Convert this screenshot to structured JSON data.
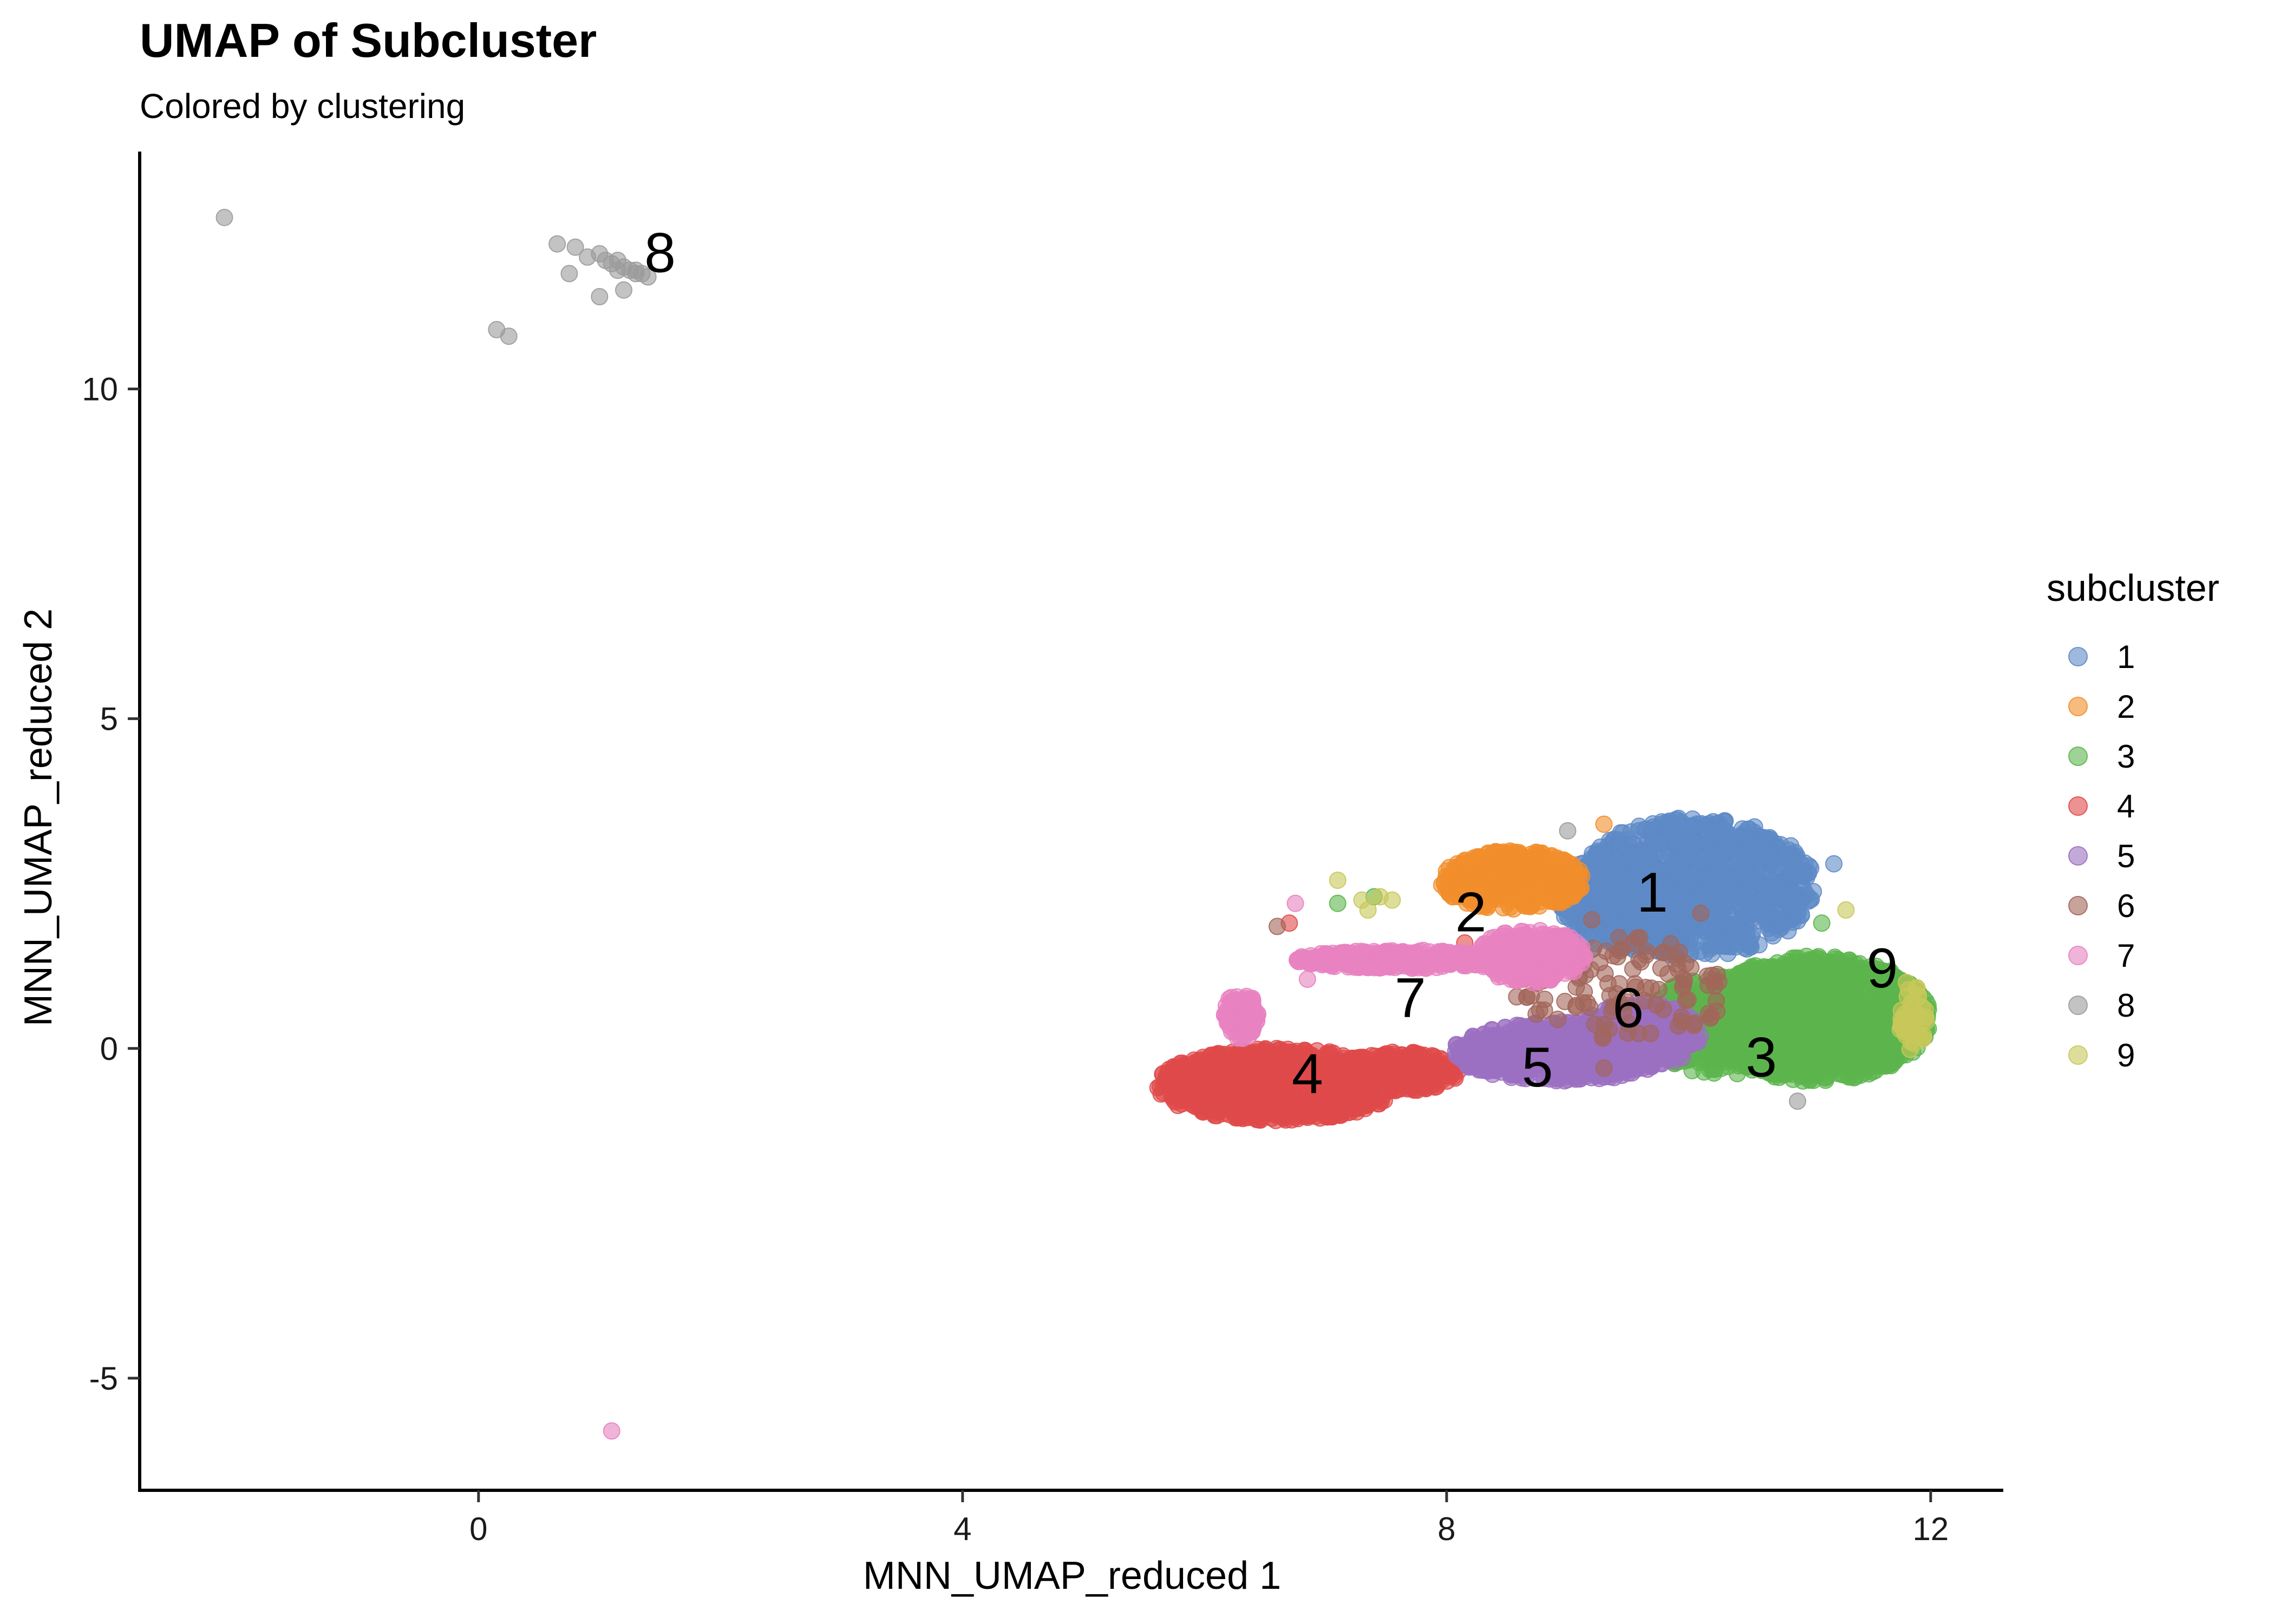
{
  "chart_data": {
    "type": "scatter",
    "title": "UMAP of Subcluster",
    "subtitle": "Colored by clustering",
    "xlabel": "MNN_UMAP_reduced 1",
    "ylabel": "MNN_UMAP_reduced 2",
    "xlim": [
      -2.8,
      12.6
    ],
    "ylim": [
      -6.7,
      13.6
    ],
    "xticks": [
      0,
      4,
      8,
      12
    ],
    "xtick_labels": [
      "0",
      "4",
      "8",
      "12"
    ],
    "yticks": [
      -5,
      0,
      5,
      10
    ],
    "ytick_labels": [
      "-5",
      "0",
      "5",
      "10"
    ],
    "grid": false,
    "legend": {
      "title": "subcluster",
      "position": "right"
    },
    "series": [
      {
        "name": "1",
        "color": "#5E8BC7",
        "label_position": [
          9.7,
          2.3
        ],
        "regions": [
          {
            "cx": 10.05,
            "cy": 2.45,
            "rx": 1.0,
            "ry": 1.05,
            "n": 1000
          },
          {
            "cx": 9.5,
            "cy": 2.2,
            "rx": 0.55,
            "ry": 0.7,
            "n": 300
          }
        ],
        "points": [
          [
            8.9,
            1.7
          ],
          [
            9.2,
            1.5
          ],
          [
            11.2,
            2.8
          ]
        ]
      },
      {
        "name": "2",
        "color": "#F28E2B",
        "label_position": [
          8.2,
          2.0
        ],
        "regions": [
          {
            "cx": 8.55,
            "cy": 2.55,
            "rx": 0.6,
            "ry": 0.45,
            "n": 380
          }
        ],
        "points": [
          [
            9.3,
            3.4
          ],
          [
            8.05,
            2.3
          ]
        ]
      },
      {
        "name": "3",
        "color": "#5CB54C",
        "label_position": [
          10.6,
          -0.2
        ],
        "regions": [
          {
            "cx": 11.05,
            "cy": 0.45,
            "rx": 0.95,
            "ry": 0.95,
            "n": 1300
          },
          {
            "cx": 10.3,
            "cy": 0.35,
            "rx": 0.7,
            "ry": 0.75,
            "n": 400
          }
        ],
        "points": [
          [
            7.1,
            2.2
          ],
          [
            7.4,
            2.3
          ],
          [
            11.1,
            1.9
          ]
        ]
      },
      {
        "name": "4",
        "color": "#E04A4A",
        "label_position": [
          6.85,
          -0.45
        ],
        "regions": [
          {
            "cx": 6.6,
            "cy": -0.55,
            "rx": 1.0,
            "ry": 0.55,
            "n": 1000
          },
          {
            "cx": 7.6,
            "cy": -0.35,
            "rx": 0.5,
            "ry": 0.3,
            "n": 250
          }
        ],
        "points": [
          [
            8.15,
            1.6
          ],
          [
            6.7,
            1.9
          ]
        ]
      },
      {
        "name": "5",
        "color": "#9B6FC1",
        "label_position": [
          8.75,
          -0.35
        ],
        "regions": [
          {
            "cx": 8.95,
            "cy": -0.05,
            "rx": 0.9,
            "ry": 0.45,
            "n": 700
          },
          {
            "cx": 9.6,
            "cy": 0.2,
            "rx": 0.5,
            "ry": 0.5,
            "n": 250
          }
        ],
        "points": []
      },
      {
        "name": "6",
        "color": "#A2665A",
        "label_position": [
          9.5,
          0.55
        ],
        "regions": [
          {
            "cx": 9.45,
            "cy": 0.9,
            "rx": 0.9,
            "ry": 0.8,
            "n": 110
          }
        ],
        "points": [
          [
            6.6,
            1.85
          ],
          [
            9.2,
            1.95
          ],
          [
            10.1,
            2.05
          ],
          [
            9.3,
            -0.3
          ],
          [
            8.7,
            0.8
          ]
        ]
      },
      {
        "name": "7",
        "color": "#E882C0",
        "label_position": [
          7.7,
          0.7
        ],
        "regions": [
          {
            "cx": 7.6,
            "cy": 1.35,
            "rx": 0.85,
            "ry": 0.14,
            "n": 320
          },
          {
            "cx": 6.3,
            "cy": 0.5,
            "rx": 0.14,
            "ry": 0.35,
            "n": 120
          },
          {
            "cx": 8.7,
            "cy": 1.4,
            "rx": 0.45,
            "ry": 0.4,
            "n": 250
          }
        ],
        "points": [
          [
            1.1,
            -5.8
          ],
          [
            6.85,
            1.05
          ],
          [
            6.75,
            2.2
          ]
        ]
      },
      {
        "name": "8",
        "color": "#9B9B9B",
        "label_position": [
          1.5,
          12.0
        ],
        "regions": [],
        "points": [
          [
            -2.1,
            12.6
          ],
          [
            0.65,
            12.2
          ],
          [
            0.8,
            12.15
          ],
          [
            0.9,
            12.0
          ],
          [
            1.0,
            12.05
          ],
          [
            1.05,
            11.95
          ],
          [
            1.1,
            11.9
          ],
          [
            1.15,
            11.95
          ],
          [
            1.2,
            11.85
          ],
          [
            1.25,
            11.8
          ],
          [
            1.3,
            11.75
          ],
          [
            1.35,
            11.75
          ],
          [
            1.4,
            11.7
          ],
          [
            1.15,
            11.8
          ],
          [
            1.3,
            11.8
          ],
          [
            0.75,
            11.75
          ],
          [
            1.2,
            11.5
          ],
          [
            1.0,
            11.4
          ],
          [
            0.15,
            10.9
          ],
          [
            0.25,
            10.8
          ],
          [
            10.9,
            -0.8
          ],
          [
            9.0,
            3.3
          ]
        ]
      },
      {
        "name": "9",
        "color": "#C8C85A",
        "label_position": [
          11.6,
          1.15
        ],
        "regions": [
          {
            "cx": 11.85,
            "cy": 0.45,
            "rx": 0.12,
            "ry": 0.5,
            "n": 40
          }
        ],
        "points": [
          [
            7.1,
            2.55
          ],
          [
            7.3,
            2.25
          ],
          [
            7.35,
            2.1
          ],
          [
            7.45,
            2.3
          ],
          [
            7.55,
            2.25
          ],
          [
            11.9,
            0.8
          ],
          [
            11.8,
            1.0
          ],
          [
            11.3,
            2.1
          ]
        ]
      }
    ]
  }
}
